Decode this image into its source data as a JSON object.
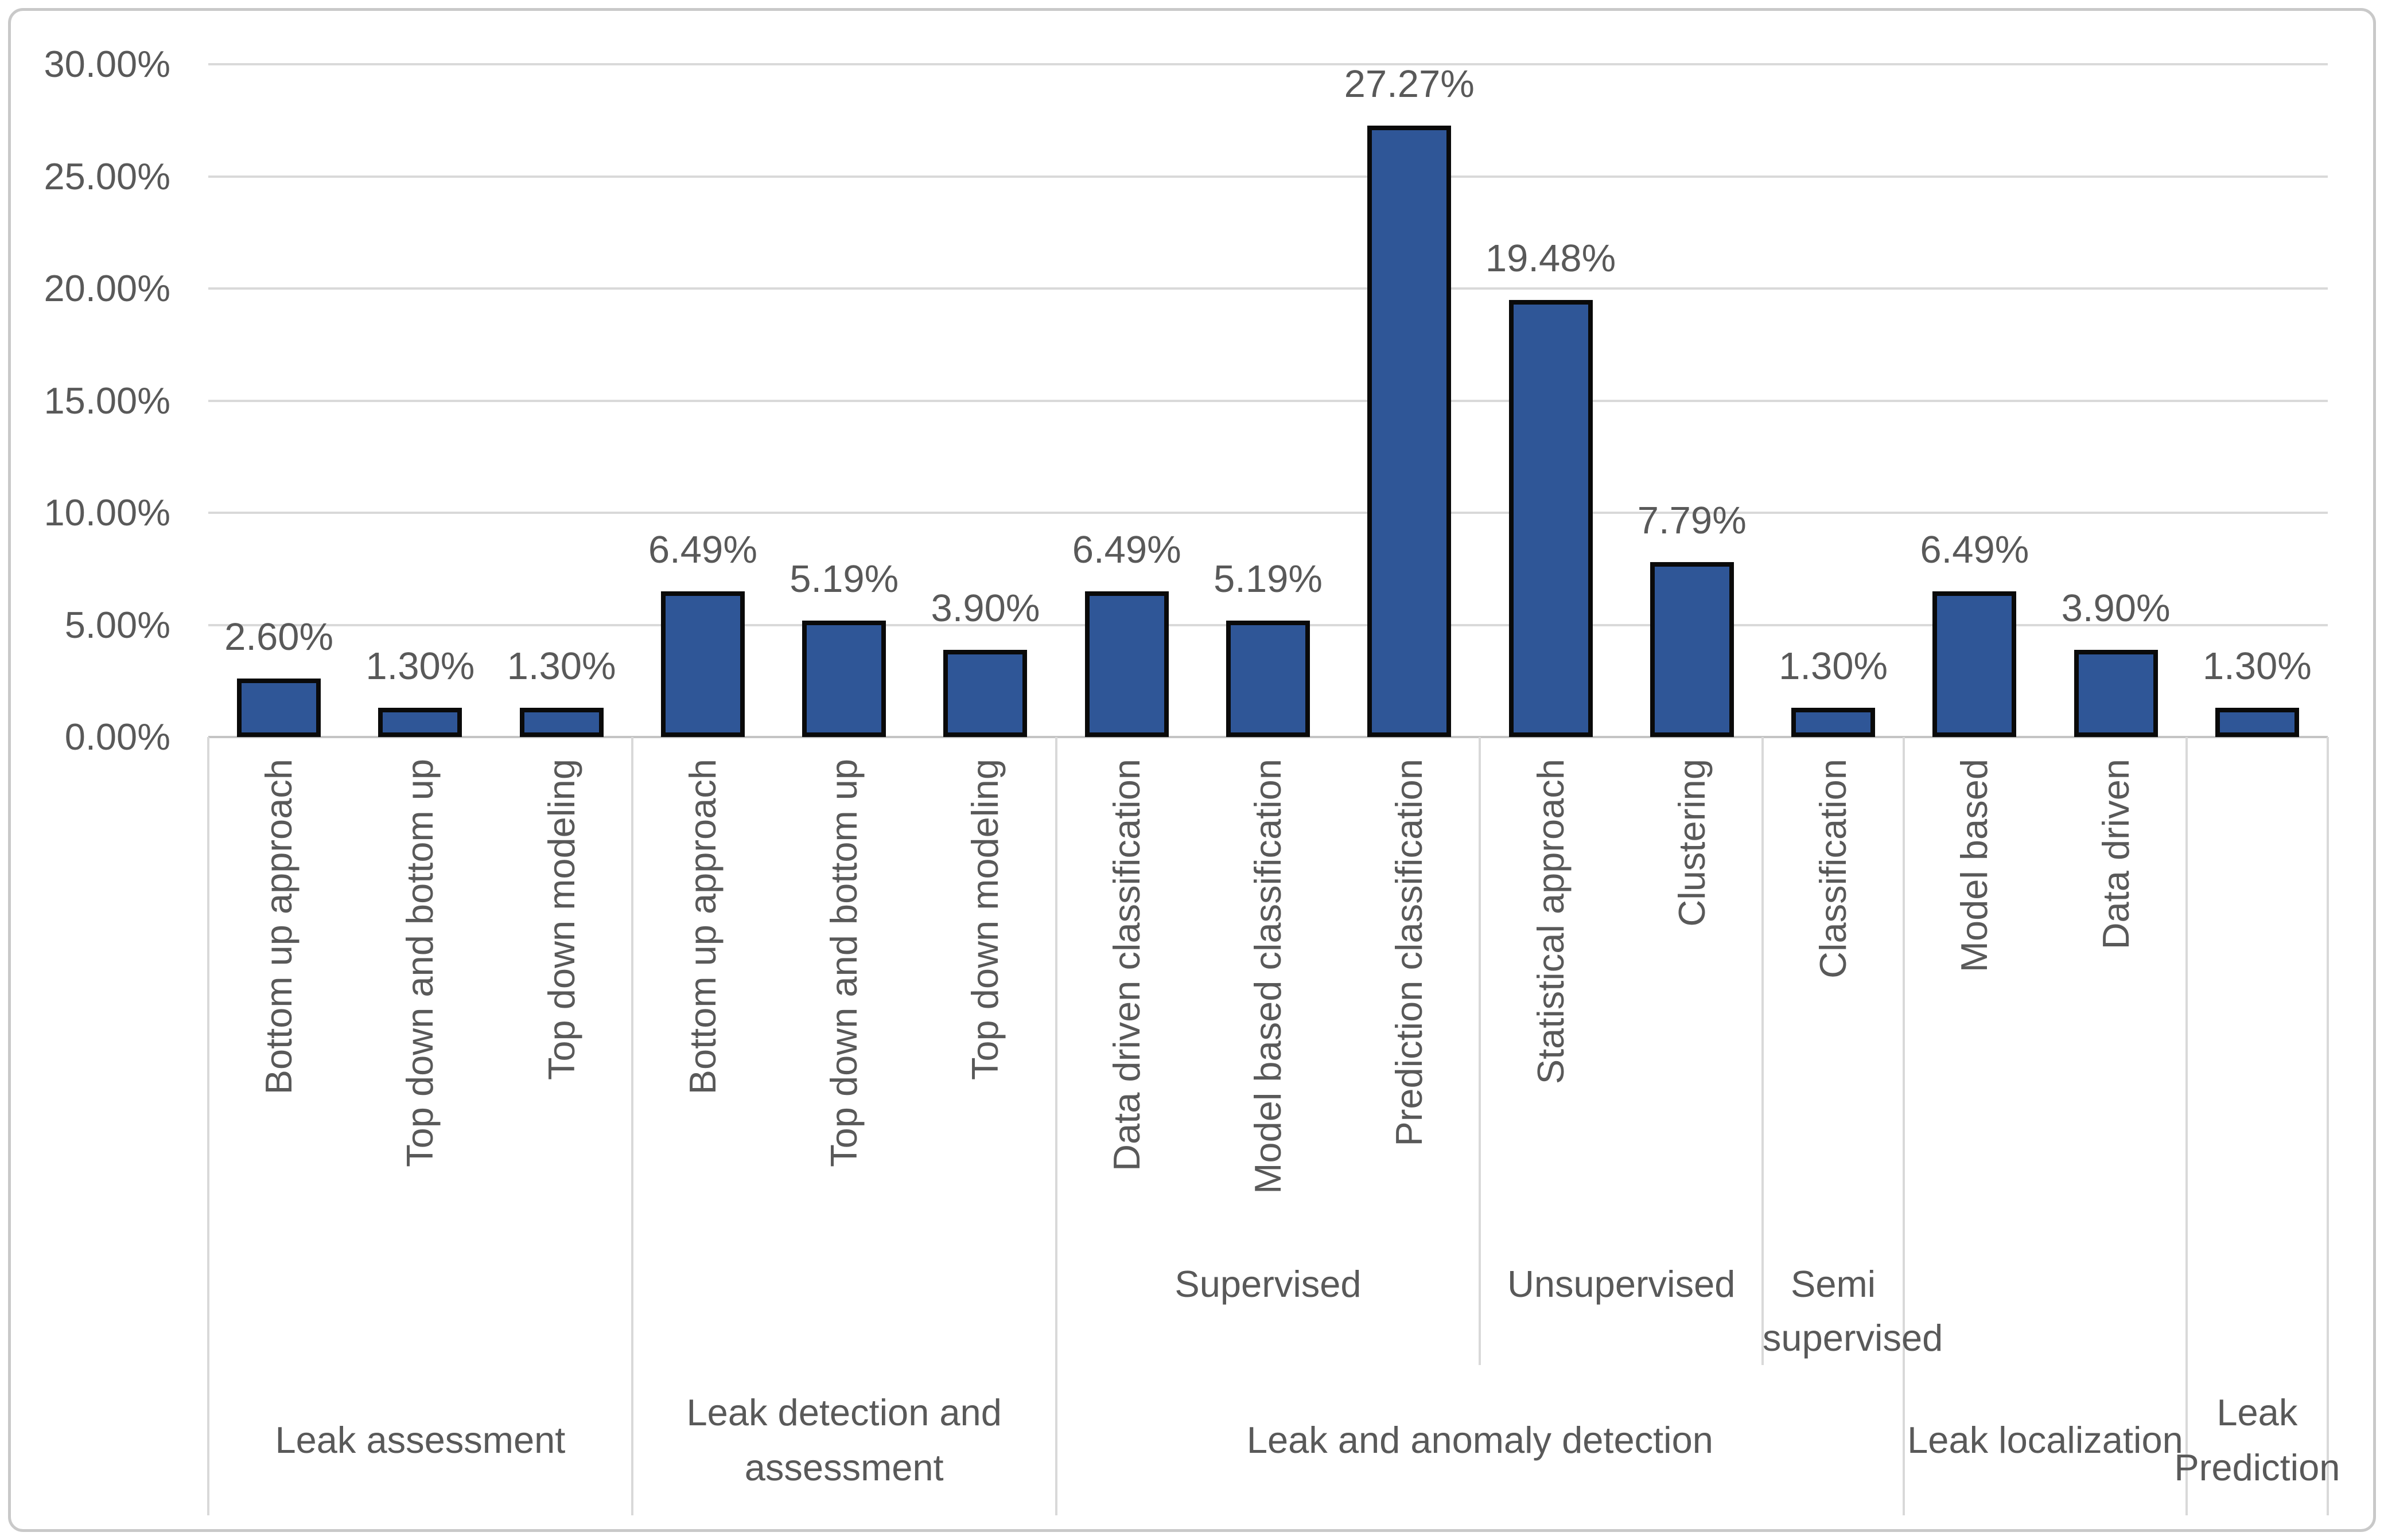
{
  "chart_data": {
    "type": "bar",
    "title": "",
    "xlabel": "",
    "ylabel": "",
    "grid": true,
    "legend": false,
    "y_axis": {
      "min": 0,
      "max": 30,
      "step": 5,
      "format": "percent",
      "tick_labels": [
        "0.00%",
        "5.00%",
        "10.00%",
        "15.00%",
        "20.00%",
        "25.00%",
        "30.00%"
      ]
    },
    "bars": [
      {
        "category": "Bottom up approach",
        "value": 2.6,
        "label": "2.60%"
      },
      {
        "category": "Top down and bottom up",
        "value": 1.3,
        "label": "1.30%"
      },
      {
        "category": "Top down modeling",
        "value": 1.3,
        "label": "1.30%"
      },
      {
        "category": "Bottom up approach",
        "value": 6.49,
        "label": "6.49%"
      },
      {
        "category": "Top down and bottom up",
        "value": 5.19,
        "label": "5.19%"
      },
      {
        "category": "Top down modeling",
        "value": 3.9,
        "label": "3.90%"
      },
      {
        "category": "Data driven classification",
        "value": 6.49,
        "label": "6.49%"
      },
      {
        "category": "Model based classification",
        "value": 5.19,
        "label": "5.19%"
      },
      {
        "category": "Prediction classification",
        "value": 27.27,
        "label": "27.27%"
      },
      {
        "category": "Statistical approach",
        "value": 19.48,
        "label": "19.48%"
      },
      {
        "category": "Clustering",
        "value": 7.79,
        "label": "7.79%"
      },
      {
        "category": "Classification",
        "value": 1.3,
        "label": "1.30%"
      },
      {
        "category": "Model based",
        "value": 6.49,
        "label": "6.49%"
      },
      {
        "category": "Data driven",
        "value": 3.9,
        "label": "3.90%"
      },
      {
        "category": "",
        "value": 1.3,
        "label": "1.30%"
      }
    ],
    "subgroups": [
      {
        "label": "Supervised",
        "span": 3,
        "parent": "Leak and anomaly detection"
      },
      {
        "label": "Unsupervised",
        "span": 2,
        "parent": "Leak and anomaly detection"
      },
      {
        "label": "Semi supervised",
        "span": 1,
        "parent": "Leak and anomaly detection"
      }
    ],
    "groups": [
      {
        "label": "Leak assessment",
        "span": 3
      },
      {
        "label": "Leak detection and assessment",
        "span": 3
      },
      {
        "label": "Leak and anomaly detection",
        "span": 6
      },
      {
        "label": "Leak localization",
        "span": 2
      },
      {
        "label": "Leak Prediction",
        "span": 1
      }
    ],
    "colors": {
      "bar_fill": "#2F5697",
      "bar_border": "#0a0a0a",
      "gridline": "#D9D9D9",
      "axis_line": "#C4C4C4",
      "text": "#595959",
      "chart_border": "#C9C9C9",
      "background": "#FFFFFF"
    }
  }
}
